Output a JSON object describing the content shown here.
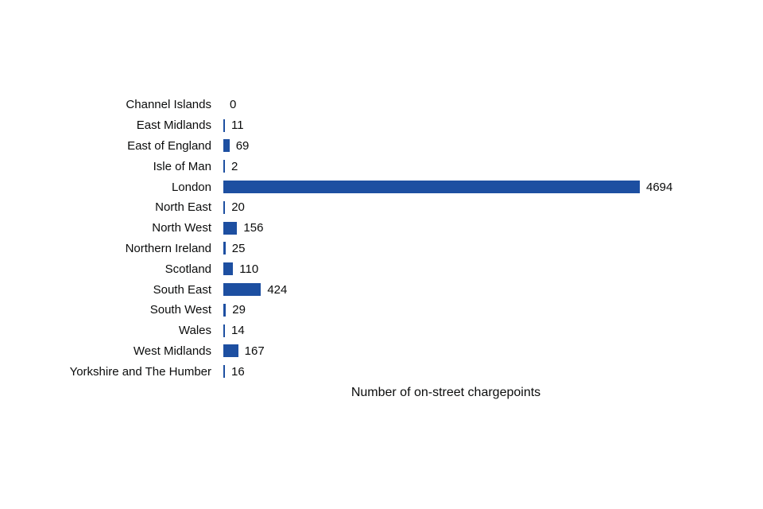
{
  "chart_data": {
    "type": "bar",
    "orientation": "horizontal",
    "title": "Number of on-street chargepoints",
    "xlabel": "Number of on-street chargepoints",
    "ylabel": "",
    "categories": [
      "Channel Islands",
      "East Midlands",
      "East of England",
      "Isle of Man",
      "London",
      "North East",
      "North West",
      "Northern Ireland",
      "Scotland",
      "South East",
      "South West",
      "Wales",
      "West Midlands",
      "Yorkshire and The Humber"
    ],
    "values": [
      0,
      11,
      69,
      2,
      4694,
      20,
      156,
      25,
      110,
      424,
      29,
      14,
      167,
      16
    ],
    "xlim": [
      0,
      4694
    ],
    "data_labels": true,
    "grid": false,
    "legend_position": "none",
    "bar_color": "#1d4fa1",
    "text_color": "#0b0c0c",
    "background_color": "#ffffff"
  }
}
